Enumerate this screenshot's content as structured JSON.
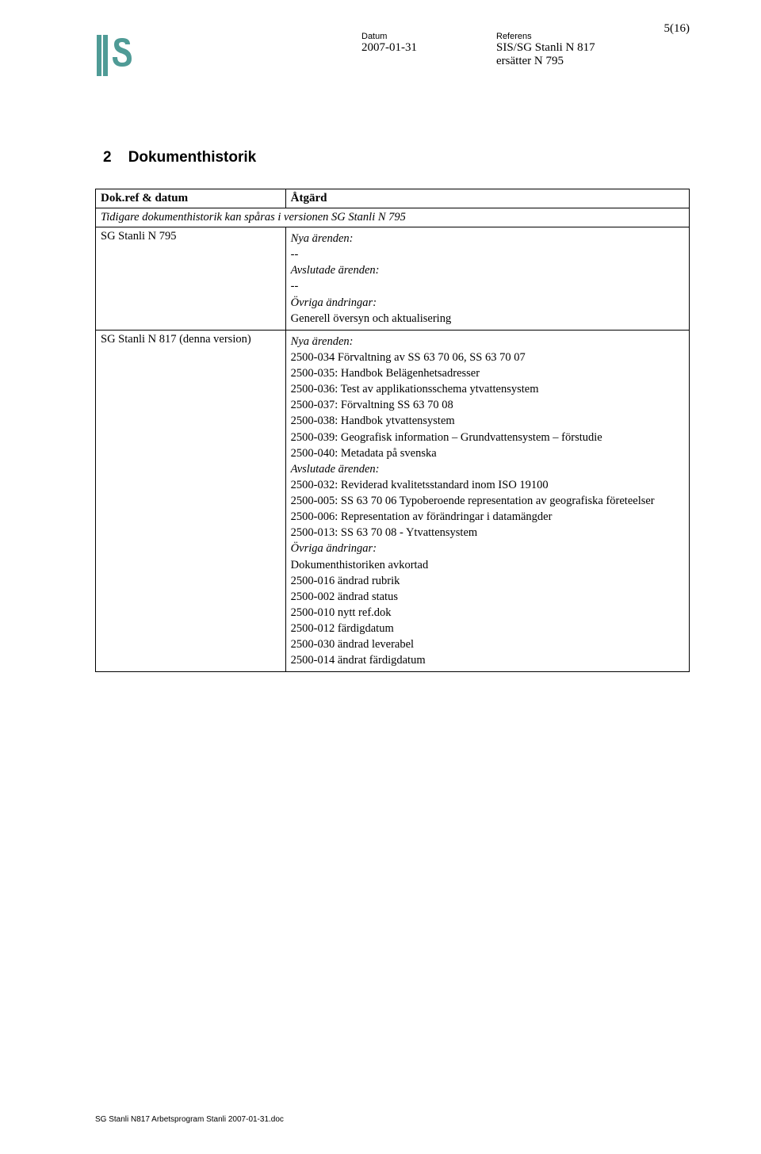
{
  "page_number": "5(16)",
  "header": {
    "datum_label": "Datum",
    "datum_value": "2007-01-31",
    "referens_label": "Referens",
    "referens_value": "SIS/SG Stanli N 817",
    "referens_sub": "ersätter N 795"
  },
  "section": {
    "number": "2",
    "title": "Dokumenthistorik"
  },
  "table": {
    "col1_header": "Dok.ref & datum",
    "col2_header": "Åtgärd",
    "history_note": "Tidigare dokumenthistorik kan spåras i versionen SG Stanli N 795",
    "rows": [
      {
        "ref": "SG Stanli N 795",
        "groups": [
          {
            "label": "Nya ärenden:",
            "items": [
              "--"
            ]
          },
          {
            "label": "Avslutade ärenden:",
            "items": [
              "--"
            ]
          },
          {
            "label": "Övriga ändringar:",
            "items": [
              "Generell översyn och aktualisering"
            ]
          }
        ]
      },
      {
        "ref": "SG Stanli N 817 (denna version)",
        "groups": [
          {
            "label": "Nya ärenden:",
            "items": [
              "2500-034 Förvaltning av SS 63 70 06, SS 63 70 07",
              "2500-035: Handbok Belägenhetsadresser",
              "2500-036: Test av applikationsschema ytvattensystem",
              "2500-037: Förvaltning SS 63 70 08",
              "2500-038: Handbok ytvattensystem",
              "2500-039: Geografisk information – Grundvattensystem – förstudie",
              "2500-040: Metadata på svenska"
            ]
          },
          {
            "label": "Avslutade ärenden:",
            "items": [
              "2500-032: Reviderad kvalitetsstandard inom ISO 19100",
              "2500-005: SS 63 70 06 Typoberoende representation av geografiska företeelser",
              "2500-006: Representation av förändringar i datamängder",
              "2500-013: SS 63 70 08 - Ytvattensystem"
            ]
          },
          {
            "label": "Övriga ändringar:",
            "items": [
              "Dokumenthistoriken avkortad",
              "2500-016 ändrad rubrik",
              "2500-002 ändrad status",
              "2500-010 nytt ref.dok",
              "2500-012 färdigdatum",
              "2500-030 ändrad leverabel",
              "2500-014 ändrat färdigdatum"
            ]
          }
        ]
      }
    ]
  },
  "footer": "SG Stanli N817 Arbetsprogram Stanli 2007-01-31.doc",
  "logo": {
    "bg": "#ffffff",
    "bar_color": "#4f9b96",
    "text_color": "#4f9b96"
  }
}
